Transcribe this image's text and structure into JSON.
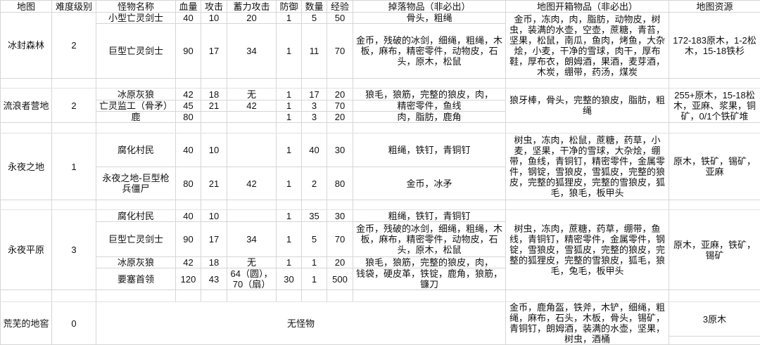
{
  "headers": [
    "地图",
    "难度级别",
    "怪物名称",
    "血量",
    "攻击",
    "蓄力攻击",
    "防御",
    "数量",
    "经验",
    "掉落物品（非必出）",
    "地图开箱物品（非必出）",
    "地图资源"
  ],
  "maps": [
    {
      "name": "冰封森林",
      "level": "2",
      "chest": "金币，冻肉，肉，脂肪，动物皮，树虫，装满的水壶，空壶，蔗糖，青苔，坚果，松鼠，南瓜，鱼肉，烤鱼，大杂烩，小麦，干净的雪球，肉干，厚布鞋，厚布衣，朗姆酒，果酒，麦芽酒，木炭，绷带，药汤，煤炭",
      "resources": "172-183原木，1-2松木，15-18铁杉",
      "monsters": [
        {
          "name": "小型亡灵剑士",
          "hp": "40",
          "atk": "10",
          "charge": "20",
          "def": "1",
          "count": "5",
          "exp": "50",
          "drops": "骨头，粗绳"
        },
        {
          "name": "巨型亡灵剑士",
          "hp": "90",
          "atk": "17",
          "charge": "34",
          "def": "1",
          "count": "11",
          "exp": "70",
          "drops": "金币，残破的冰剑，细绳，粗绳，木板，麻布，精密零件，动物皮，石头，原木，松鼠"
        }
      ]
    },
    {
      "name": "流浪者营地",
      "level": "2",
      "chest": "狼牙棒，骨头，完整的狼皮，脂肪，粗绳",
      "resources": "255+原木，15-18松木，亚麻、浆果，铜矿，0/1个铁矿堆",
      "monsters": [
        {
          "name": "冰原灰狼",
          "hp": "42",
          "atk": "18",
          "charge": "无",
          "def": "1",
          "count": "17",
          "exp": "20",
          "drops": "狼毛，狼筋，完整的狼皮，肉，"
        },
        {
          "name": "亡灵监工（骨矛）",
          "hp": "45",
          "atk": "21",
          "charge": "42",
          "def": "1",
          "count": "3",
          "exp": "70",
          "drops": "精密零件，鱼线"
        },
        {
          "name": "鹿",
          "hp": "80",
          "atk": "",
          "charge": "",
          "def": "1",
          "count": "3",
          "exp": "20",
          "drops": "肉，脂肪，鹿角"
        }
      ]
    },
    {
      "name": "永夜之地",
      "level": "1",
      "chest": "树虫，冻肉，松鼠，蔗糖，药草，小麦，坚果，干净的雪球，大杂烩，绷带，鱼线，青铜钉，精密零件，金属零件，钢锭，雪狼皮，雪狐皮，完整的狼皮，完整的狐狸皮，完整的雪狼皮，狐毛，狼毛，板甲头",
      "resources": "原木，铁矿，锡矿，亚麻",
      "monsters": [
        {
          "name": "腐化村民",
          "hp": "40",
          "atk": "10",
          "charge": "",
          "def": "1",
          "count": "40",
          "exp": "30",
          "drops": "粗绳，铁钉，青铜钉"
        },
        {
          "name": "永夜之地-巨型枪兵僵尸",
          "hp": "80",
          "atk": "21",
          "charge": "42",
          "def": "1",
          "count": "2",
          "exp": "80",
          "drops": "金币，冰矛"
        }
      ]
    },
    {
      "name": "永夜平原",
      "level": "3",
      "chest": "树虫，冻肉，蔗糖，药草，绷带，鱼线，青铜钉，精密零件，金属零件，钢锭，雪狼皮，雪狐皮，完整的狼皮，完整的狐狸皮，完整的雪狼皮，狐毛，狼毛，兔毛，板甲头",
      "resources": "原木，亚麻，铁矿，锡矿",
      "monsters": [
        {
          "name": "腐化村民",
          "hp": "40",
          "atk": "10",
          "charge": "",
          "def": "1",
          "count": "35",
          "exp": "30",
          "drops": "粗绳，铁钉，青铜钉"
        },
        {
          "name": "巨型亡灵剑士",
          "hp": "90",
          "atk": "17",
          "charge": "34",
          "def": "1",
          "count": "5",
          "exp": "70",
          "drops": "金币，残破的冰剑，细绳，粗绳，木板，麻布，精密零件，动物皮，石头，原木，松鼠"
        },
        {
          "name": "冰原灰狼",
          "hp": "42",
          "atk": "18",
          "charge": "无",
          "def": "1",
          "count": "1",
          "exp": "20",
          "drops": "狼毛，狼筋，完整的狼皮，肉，"
        },
        {
          "name": "要塞首领",
          "hp": "120",
          "atk": "43",
          "charge": "64（圆），70（扇）",
          "def": "30",
          "count": "1",
          "exp": "500",
          "drops": "钱袋，硬皮革，铁锭，鹿角，狼筋，镰刀"
        }
      ]
    },
    {
      "name": "荒芜的地窖",
      "level": "0",
      "no_monsters": "无怪物",
      "chest": "金币，鹿角盔，铁斧，木铲，细绳，粗绳，麻布，石头，木板，骨头，锡矿，青铜钉，朗姆酒，装满的水壶，坚果，树虫，酒桶",
      "resources": "3原木"
    }
  ]
}
